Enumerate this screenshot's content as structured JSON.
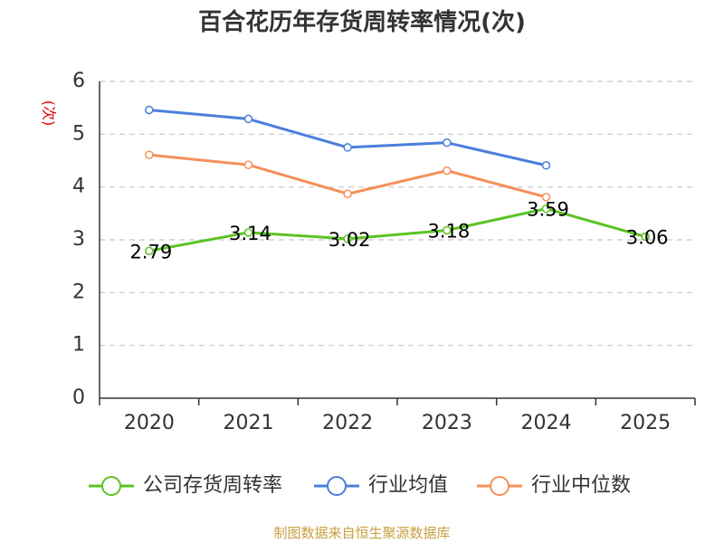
{
  "chart_data": {
    "type": "line",
    "title": "百合花历年存货周转率情况(次)",
    "ylabel": "(次)",
    "xlabel": "",
    "categories": [
      "2020",
      "2021",
      "2022",
      "2023",
      "2024",
      "2025"
    ],
    "ylim": [
      0,
      6
    ],
    "yticks": [
      "0",
      "1",
      "2",
      "3",
      "4",
      "5",
      "6"
    ],
    "grid": true,
    "legend_position": "bottom",
    "series": [
      {
        "name": "公司存货周转率",
        "color": "#5cc323",
        "values": [
          2.79,
          3.14,
          3.02,
          3.18,
          3.59,
          3.06
        ],
        "labels": [
          "2.79",
          "3.14",
          "3.02",
          "3.18",
          "3.59",
          "3.06"
        ]
      },
      {
        "name": "行业均值",
        "color": "#4a7fdc",
        "values": [
          5.46,
          5.29,
          4.75,
          4.84,
          4.41,
          null
        ]
      },
      {
        "name": "行业中位数",
        "color": "#f5905a",
        "values": [
          4.61,
          4.42,
          3.87,
          4.31,
          3.81,
          null
        ]
      }
    ]
  },
  "source_text": "制图数据来自恒生聚源数据库"
}
